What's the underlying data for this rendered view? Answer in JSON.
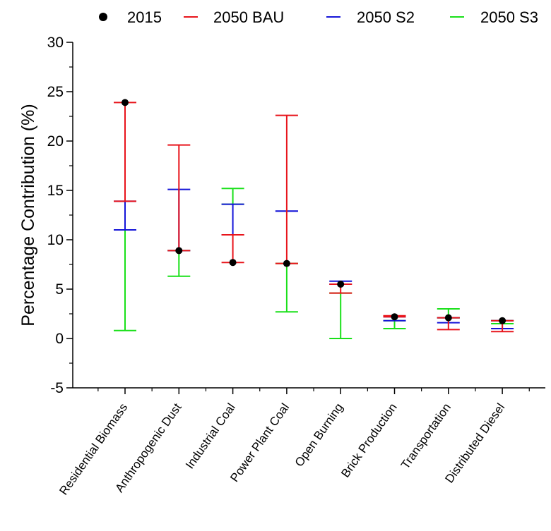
{
  "chart_data": {
    "type": "scatter",
    "title": "",
    "xlabel": "",
    "ylabel": "Percentage Contribution (%)",
    "ylim": [
      -5,
      30
    ],
    "yticks": [
      -5,
      0,
      5,
      10,
      15,
      20,
      25,
      30
    ],
    "grid": false,
    "legend_position": "top",
    "categories": [
      "Residential Biomass",
      "Anthropogenic Dust",
      "Industrial Coal",
      "Power Plant  Coal",
      "Open Burning",
      "Brick Production",
      "Transportation",
      "Distributed Diesel"
    ],
    "series": [
      {
        "name": "2015",
        "marker": "dot",
        "color": "#000000",
        "values": [
          23.9,
          8.9,
          7.7,
          7.6,
          5.5,
          2.2,
          2.1,
          1.8
        ]
      },
      {
        "name": "2050 BAU",
        "marker": "range",
        "color": "#e8141b",
        "low": [
          13.9,
          8.9,
          7.7,
          7.6,
          4.6,
          2.2,
          0.9,
          0.7
        ],
        "high": [
          23.9,
          19.6,
          10.5,
          22.6,
          5.5,
          2.3,
          2.1,
          1.8
        ]
      },
      {
        "name": "2050 S2",
        "marker": "range",
        "color": "#1515d8",
        "low": [
          11.0,
          8.9,
          10.5,
          12.9,
          5.5,
          1.8,
          1.6,
          1.0
        ],
        "high": [
          13.9,
          15.1,
          13.6,
          12.9,
          5.8,
          2.2,
          2.1,
          1.8
        ]
      },
      {
        "name": "2050 S3",
        "marker": "range",
        "color": "#19e019",
        "low": [
          0.8,
          6.3,
          13.6,
          2.7,
          0.0,
          1.0,
          2.1,
          1.5
        ],
        "high": [
          11.0,
          8.9,
          15.2,
          7.6,
          4.6,
          1.8,
          3.0,
          1.8
        ]
      }
    ]
  }
}
